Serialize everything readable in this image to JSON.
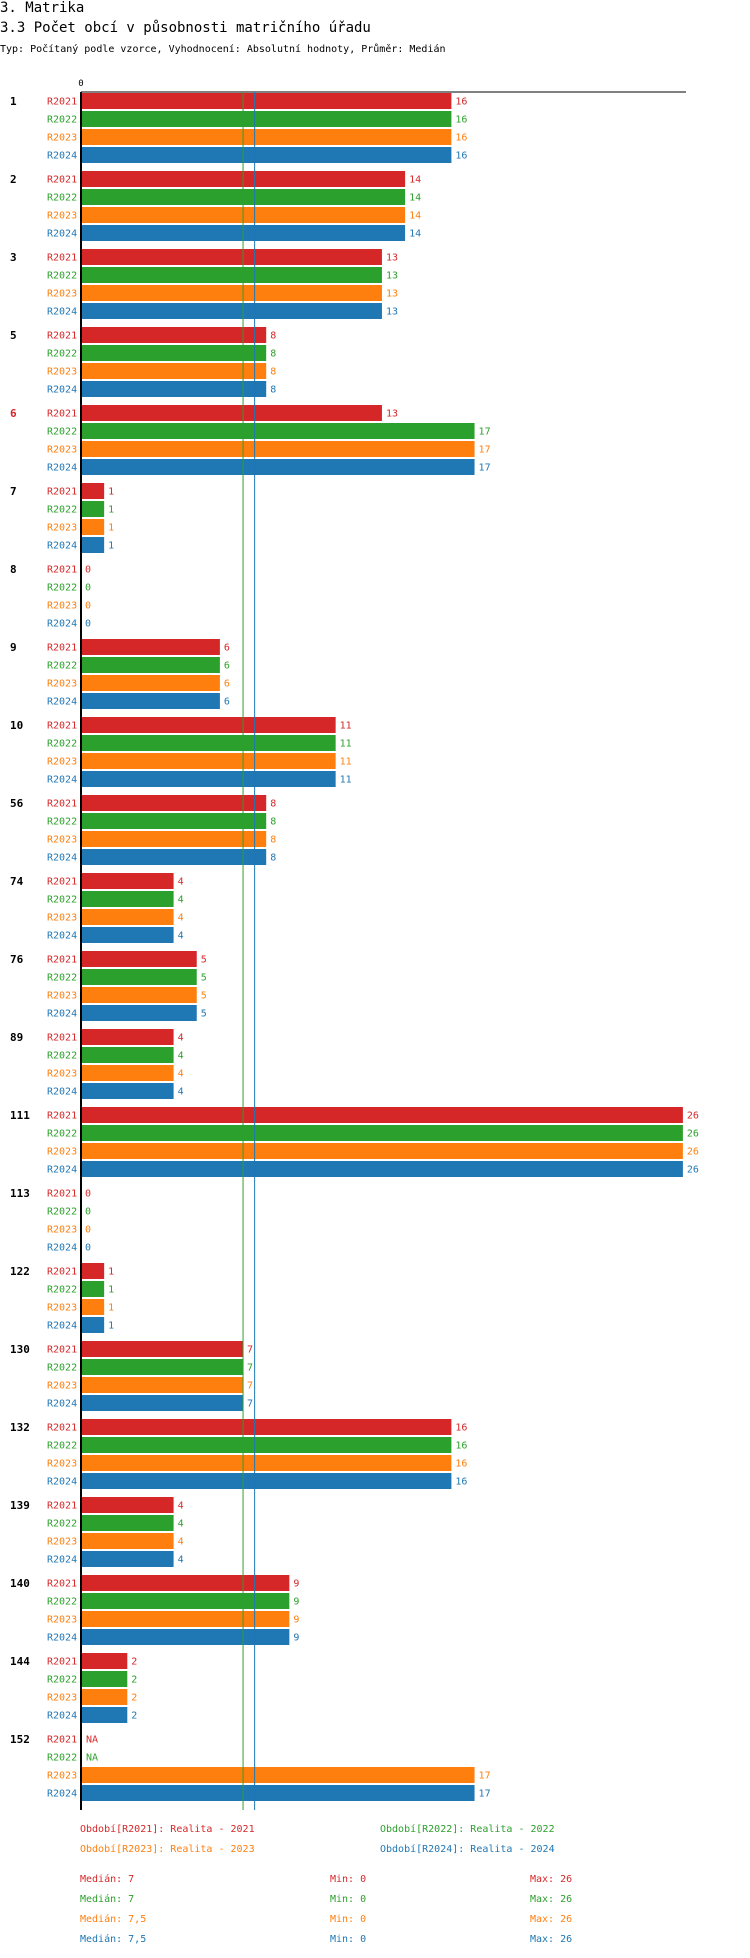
{
  "header": {
    "section": "3. Matrika",
    "title": "3.3 Počet obcí v působnosti matričního úřadu",
    "subtitle": "Typ: Počítaný podle vzorce, Vyhodnocení: Absolutní hodnoty, Průměr: Medián"
  },
  "colors": {
    "R2021": "#d62728",
    "R2022": "#2ca02c",
    "R2023": "#ff7f0e",
    "R2024": "#1f77b4",
    "highlight_label": "#d62728"
  },
  "chart_data": {
    "type": "bar",
    "orientation": "horizontal",
    "x_axis_label": "0",
    "xlim": [
      0,
      26
    ],
    "series_keys": [
      "R2021",
      "R2022",
      "R2023",
      "R2024"
    ],
    "categories": [
      {
        "label": "1",
        "values": [
          16,
          16,
          16,
          16
        ]
      },
      {
        "label": "2",
        "values": [
          14,
          14,
          14,
          14
        ]
      },
      {
        "label": "3",
        "values": [
          13,
          13,
          13,
          13
        ]
      },
      {
        "label": "5",
        "values": [
          8,
          8,
          8,
          8
        ]
      },
      {
        "label": "6",
        "values": [
          13,
          17,
          17,
          17
        ],
        "highlight": true
      },
      {
        "label": "7",
        "values": [
          1,
          1,
          1,
          1
        ]
      },
      {
        "label": "8",
        "values": [
          0,
          0,
          0,
          0
        ]
      },
      {
        "label": "9",
        "values": [
          6,
          6,
          6,
          6
        ]
      },
      {
        "label": "10",
        "values": [
          11,
          11,
          11,
          11
        ]
      },
      {
        "label": "56",
        "values": [
          8,
          8,
          8,
          8
        ]
      },
      {
        "label": "74",
        "values": [
          4,
          4,
          4,
          4
        ]
      },
      {
        "label": "76",
        "values": [
          5,
          5,
          5,
          5
        ]
      },
      {
        "label": "89",
        "values": [
          4,
          4,
          4,
          4
        ]
      },
      {
        "label": "111",
        "values": [
          26,
          26,
          26,
          26
        ]
      },
      {
        "label": "113",
        "values": [
          0,
          0,
          0,
          0
        ]
      },
      {
        "label": "122",
        "values": [
          1,
          1,
          1,
          1
        ]
      },
      {
        "label": "130",
        "values": [
          7,
          7,
          7,
          7
        ]
      },
      {
        "label": "132",
        "values": [
          16,
          16,
          16,
          16
        ]
      },
      {
        "label": "139",
        "values": [
          4,
          4,
          4,
          4
        ]
      },
      {
        "label": "140",
        "values": [
          9,
          9,
          9,
          9
        ]
      },
      {
        "label": "144",
        "values": [
          2,
          2,
          2,
          2
        ]
      },
      {
        "label": "152",
        "values": [
          null,
          null,
          17,
          17
        ]
      }
    ],
    "na_label": "NA",
    "median_lines": [
      {
        "series": "R2022",
        "value": 7
      },
      {
        "series": "R2024",
        "value": 7.5
      }
    ]
  },
  "legend": {
    "periods": [
      {
        "key": "R2021",
        "text": "Období[R2021]: Realita - 2021"
      },
      {
        "key": "R2022",
        "text": "Období[R2022]: Realita - 2022"
      },
      {
        "key": "R2023",
        "text": "Období[R2023]: Realita - 2023"
      },
      {
        "key": "R2024",
        "text": "Období[R2024]: Realita - 2024"
      }
    ],
    "stats": [
      {
        "key": "R2021",
        "median": "Medián: 7",
        "min": "Min: 0",
        "max": "Max: 26"
      },
      {
        "key": "R2022",
        "median": "Medián: 7",
        "min": "Min: 0",
        "max": "Max: 26"
      },
      {
        "key": "R2023",
        "median": "Medián: 7,5",
        "min": "Min: 0",
        "max": "Max: 26"
      },
      {
        "key": "R2024",
        "median": "Medián: 7,5",
        "min": "Min: 0",
        "max": "Max: 26"
      }
    ]
  }
}
